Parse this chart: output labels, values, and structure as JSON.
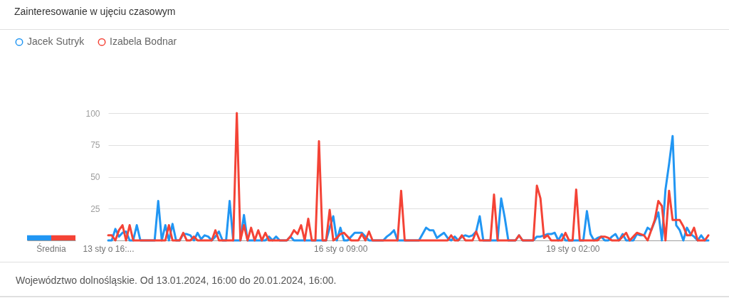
{
  "chart_data": [
    {
      "type": "bar",
      "categories": [
        "Średnia"
      ],
      "series": [
        {
          "color": "#2196f3",
          "values": [
            4
          ]
        },
        {
          "color": "#f44336",
          "values": [
            4
          ]
        }
      ],
      "ylim": [
        0,
        100
      ],
      "tick_labels": "x"
    },
    {
      "type": "line",
      "title": "Zainteresowanie w ujęciu czasowym",
      "annotations": [
        "Województwo dolnośląskie. Od 13.01.2024, 16:00 do 20.01.2024, 16:00."
      ],
      "categories": [
        "13 sty o 16:...",
        null,
        null,
        null,
        null,
        null,
        null,
        null,
        null,
        null,
        null,
        null,
        null,
        null,
        null,
        null,
        null,
        null,
        null,
        null,
        null,
        null,
        null,
        null,
        null,
        null,
        null,
        null,
        null,
        null,
        null,
        null,
        null,
        null,
        null,
        null,
        null,
        null,
        null,
        null,
        null,
        null,
        null,
        null,
        null,
        null,
        null,
        null,
        null,
        null,
        null,
        null,
        null,
        null,
        null,
        null,
        null,
        null,
        null,
        null,
        null,
        null,
        null,
        null,
        null,
        "16 sty o 09:00",
        null,
        null,
        null,
        null,
        null,
        null,
        null,
        null,
        null,
        null,
        null,
        null,
        null,
        null,
        null,
        null,
        null,
        null,
        null,
        null,
        null,
        null,
        null,
        null,
        null,
        null,
        null,
        null,
        null,
        null,
        null,
        null,
        null,
        null,
        null,
        null,
        null,
        null,
        null,
        null,
        null,
        null,
        null,
        null,
        null,
        null,
        null,
        null,
        null,
        null,
        null,
        null,
        null,
        null,
        null,
        null,
        null,
        null,
        null,
        null,
        null,
        null,
        null,
        null,
        "19 sty o 02:00",
        null,
        null,
        null,
        null,
        null,
        null,
        null,
        null,
        null,
        null,
        null,
        null,
        null,
        null,
        null,
        null,
        null,
        null,
        null,
        null,
        null,
        null,
        null,
        null,
        null,
        null,
        null,
        null,
        null,
        null,
        null,
        null,
        null,
        null,
        null,
        null,
        null,
        null
      ],
      "series": [
        {
          "name": "Jacek Sutryk",
          "color": "#2196f3",
          "values": [
            0,
            0,
            9,
            3,
            6,
            7,
            0,
            0,
            12,
            0,
            0,
            0,
            0,
            0,
            31,
            0,
            12,
            0,
            13,
            0,
            0,
            5,
            5,
            4,
            0,
            6,
            1,
            4,
            3,
            0,
            3,
            7,
            0,
            0,
            31,
            0,
            0,
            0,
            20,
            0,
            0,
            0,
            0,
            0,
            0,
            3,
            0,
            3,
            0,
            0,
            0,
            3,
            0,
            0,
            0,
            0,
            0,
            0,
            0,
            0,
            0,
            0,
            10,
            19,
            0,
            10,
            0,
            0,
            3,
            6,
            6,
            6,
            3,
            0,
            0,
            0,
            0,
            0,
            3,
            5,
            8,
            0,
            0,
            0,
            0,
            0,
            0,
            0,
            5,
            10,
            8,
            8,
            2,
            4,
            6,
            2,
            0,
            3,
            0,
            3,
            4,
            3,
            4,
            7,
            19,
            0,
            0,
            0,
            0,
            0,
            33,
            18,
            0,
            0,
            0,
            4,
            0,
            0,
            0,
            0,
            3,
            3,
            4,
            5,
            5,
            6,
            0,
            5,
            0,
            0,
            0,
            0,
            0,
            0,
            23,
            5,
            0,
            2,
            3,
            0,
            0,
            3,
            5,
            0,
            5,
            0,
            0,
            0,
            5,
            4,
            4,
            10,
            8,
            15,
            22,
            0,
            40,
            60,
            82,
            12,
            8,
            0,
            10,
            5,
            3,
            0,
            4,
            0,
            0
          ]
        },
        {
          "name": "Izabela Bodnar",
          "color": "#f44336",
          "values": [
            4,
            4,
            0,
            8,
            12,
            0,
            12,
            0,
            0,
            0,
            0,
            0,
            0,
            0,
            0,
            0,
            0,
            12,
            0,
            0,
            0,
            6,
            0,
            0,
            3,
            0,
            0,
            0,
            0,
            0,
            8,
            0,
            0,
            0,
            0,
            0,
            100,
            0,
            12,
            0,
            10,
            0,
            8,
            0,
            6,
            0,
            0,
            0,
            0,
            0,
            0,
            3,
            8,
            5,
            12,
            0,
            17,
            0,
            0,
            78,
            0,
            0,
            24,
            0,
            2,
            5,
            6,
            3,
            0,
            0,
            0,
            5,
            0,
            7,
            0,
            0,
            0,
            0,
            0,
            0,
            0,
            0,
            39,
            0,
            0,
            0,
            0,
            0,
            0,
            0,
            0,
            0,
            0,
            0,
            0,
            0,
            4,
            0,
            0,
            4,
            0,
            0,
            0,
            7,
            0,
            0,
            0,
            0,
            36,
            0,
            0,
            0,
            0,
            0,
            0,
            4,
            0,
            0,
            0,
            0,
            43,
            33,
            2,
            4,
            0,
            0,
            0,
            0,
            6,
            0,
            0,
            40,
            0,
            0,
            0,
            0,
            0,
            0,
            3,
            3,
            2,
            0,
            0,
            0,
            3,
            6,
            0,
            3,
            6,
            5,
            4,
            0,
            8,
            16,
            31,
            27,
            0,
            39,
            16,
            16,
            16,
            11,
            4,
            4,
            10,
            0,
            0,
            0,
            4
          ]
        }
      ],
      "ylim": [
        0,
        100
      ],
      "yticks": [
        25,
        50,
        75,
        100
      ],
      "grid": "y",
      "legend": "top left"
    }
  ]
}
